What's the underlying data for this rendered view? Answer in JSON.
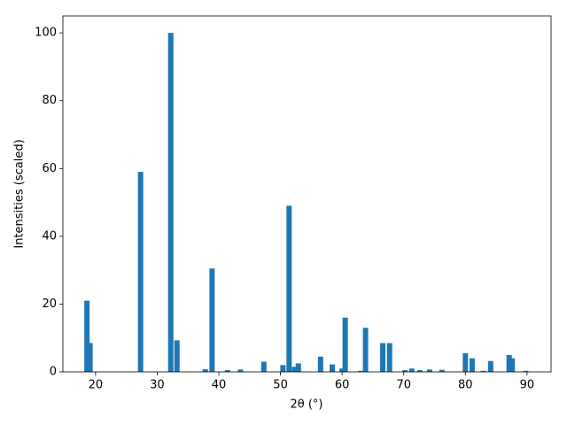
{
  "chart_data": {
    "type": "bar",
    "xlabel": "2θ (°)",
    "ylabel": "Intensities (scaled)",
    "color": "#1f77b4",
    "x": [
      18.6,
      19.1,
      27.3,
      32.2,
      33.2,
      37.8,
      38.9,
      41.4,
      43.5,
      47.3,
      50.4,
      51.4,
      52.3,
      52.9,
      56.5,
      58.4,
      60.0,
      60.5,
      63.0,
      63.8,
      66.6,
      67.7,
      70.2,
      71.3,
      72.6,
      74.2,
      76.2,
      80.0,
      81.1,
      82.9,
      84.1,
      87.1,
      87.6,
      89.8
    ],
    "values": [
      21,
      8.5,
      59,
      100,
      9.3,
      0.8,
      30.5,
      0.5,
      0.7,
      3,
      2,
      49,
      1.5,
      2.5,
      4.5,
      2.2,
      1,
      16,
      0.3,
      13,
      8.5,
      8.5,
      0.5,
      1,
      0.5,
      0.7,
      0.6,
      5.5,
      4,
      0.3,
      3.2,
      5,
      4,
      0.3
    ],
    "xlim": [
      14.7,
      93.9
    ],
    "ylim": [
      0,
      105
    ],
    "xticks": [
      20,
      30,
      40,
      50,
      60,
      70,
      80,
      90
    ],
    "yticks": [
      0,
      20,
      40,
      60,
      80,
      100
    ]
  }
}
